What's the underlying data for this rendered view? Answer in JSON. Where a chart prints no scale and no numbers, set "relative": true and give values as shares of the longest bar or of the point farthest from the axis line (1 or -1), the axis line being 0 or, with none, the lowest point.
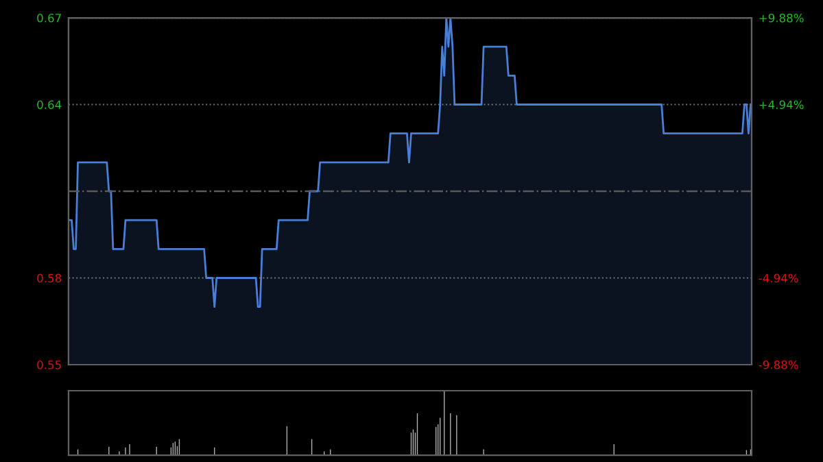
{
  "chart_data": [
    {
      "type": "area",
      "categories": [
        null,
        null,
        null,
        null,
        null,
        null,
        null,
        null,
        null,
        null,
        null,
        null,
        null,
        null,
        null,
        null,
        null,
        null,
        null,
        null,
        null,
        null,
        null,
        null,
        null,
        null,
        null,
        null,
        null,
        null,
        null,
        null,
        null,
        null,
        null,
        null,
        null,
        null,
        null,
        null,
        null,
        null,
        null,
        null,
        null,
        null,
        null,
        null,
        null,
        null,
        null,
        null,
        null,
        null,
        null,
        null,
        null,
        null,
        null,
        null,
        null,
        null,
        null,
        null,
        null,
        null,
        null,
        null,
        null,
        null,
        null,
        null,
        null,
        null,
        null,
        null,
        null,
        null,
        null,
        null,
        null,
        null,
        null,
        null,
        null,
        null,
        null,
        null,
        null,
        null,
        null,
        null,
        null,
        null,
        null,
        null,
        null,
        null,
        null,
        null,
        null,
        null,
        null,
        null,
        null,
        null,
        null,
        null,
        null,
        null,
        null,
        null,
        null,
        null,
        null,
        null,
        null,
        null,
        null,
        null,
        null,
        null,
        null,
        null,
        null,
        null,
        null,
        null,
        null,
        null,
        null,
        null,
        null,
        null,
        null,
        null,
        null,
        null,
        null,
        null,
        null,
        null,
        null,
        null,
        null,
        null,
        null,
        null,
        null,
        null,
        null,
        null,
        null,
        null,
        null,
        null,
        null,
        null,
        null,
        null,
        null,
        null,
        null,
        null,
        null,
        null,
        null,
        null,
        null,
        null,
        null,
        null,
        null,
        null,
        null,
        null,
        null,
        null,
        null,
        null,
        null,
        null,
        null,
        null,
        null,
        null,
        null,
        null,
        null,
        null,
        null,
        null,
        null,
        null,
        null,
        null,
        null,
        null,
        null,
        null,
        null,
        null,
        null,
        null,
        null,
        null,
        null,
        null,
        null,
        null,
        null,
        null,
        null,
        null,
        null,
        null,
        null,
        null,
        null,
        null,
        null,
        null,
        null,
        null,
        null,
        null,
        null,
        null,
        null,
        null,
        null,
        null,
        null,
        null,
        null,
        null,
        null,
        null,
        null,
        null,
        null,
        null,
        null,
        null,
        null,
        null,
        null,
        null,
        null,
        null,
        null,
        null,
        null,
        null,
        null,
        null,
        null,
        null,
        null,
        null,
        null,
        null,
        null,
        null,
        null,
        null,
        null,
        null,
        null,
        null,
        null,
        null,
        null,
        null,
        null,
        null,
        null,
        null,
        null,
        null,
        null,
        null,
        null,
        null,
        null,
        null,
        null,
        null,
        null,
        null,
        null,
        null,
        null,
        null,
        null,
        null,
        null,
        null,
        null,
        null,
        null,
        null,
        null,
        null,
        null,
        null,
        null,
        null,
        null,
        null,
        null,
        null,
        null,
        null,
        null,
        null,
        null,
        null,
        null,
        null,
        null,
        null,
        null,
        null,
        null,
        null,
        null,
        null,
        null,
        null
      ],
      "series": [
        {
          "color": "#4a7fd8",
          "values": [
            0.6,
            0.6,
            0.59,
            0.59,
            0.62,
            0.62,
            0.62,
            0.62,
            0.62,
            0.62,
            0.62,
            0.62,
            0.62,
            0.62,
            0.62,
            0.62,
            0.62,
            0.62,
            0.62,
            0.61,
            0.61,
            0.59,
            0.59,
            0.59,
            0.59,
            0.59,
            0.59,
            0.6,
            0.6,
            0.6,
            0.6,
            0.6,
            0.6,
            0.6,
            0.6,
            0.6,
            0.6,
            0.6,
            0.6,
            0.6,
            0.6,
            0.6,
            0.6,
            0.59,
            0.59,
            0.59,
            0.59,
            0.59,
            0.59,
            0.59,
            0.59,
            0.59,
            0.59,
            0.59,
            0.59,
            0.59,
            0.59,
            0.59,
            0.59,
            0.59,
            0.59,
            0.59,
            0.59,
            0.59,
            0.59,
            0.59,
            0.58,
            0.58,
            0.58,
            0.58,
            0.57,
            0.58,
            0.58,
            0.58,
            0.58,
            0.58,
            0.58,
            0.58,
            0.58,
            0.58,
            0.58,
            0.58,
            0.58,
            0.58,
            0.58,
            0.58,
            0.58,
            0.58,
            0.58,
            0.58,
            0.58,
            0.57,
            0.57,
            0.59,
            0.59,
            0.59,
            0.59,
            0.59,
            0.59,
            0.59,
            0.59,
            0.6,
            0.6,
            0.6,
            0.6,
            0.6,
            0.6,
            0.6,
            0.6,
            0.6,
            0.6,
            0.6,
            0.6,
            0.6,
            0.6,
            0.6,
            0.61,
            0.61,
            0.61,
            0.61,
            0.61,
            0.62,
            0.62,
            0.62,
            0.62,
            0.62,
            0.62,
            0.62,
            0.62,
            0.62,
            0.62,
            0.62,
            0.62,
            0.62,
            0.62,
            0.62,
            0.62,
            0.62,
            0.62,
            0.62,
            0.62,
            0.62,
            0.62,
            0.62,
            0.62,
            0.62,
            0.62,
            0.62,
            0.62,
            0.62,
            0.62,
            0.62,
            0.62,
            0.62,
            0.62,
            0.63,
            0.63,
            0.63,
            0.63,
            0.63,
            0.63,
            0.63,
            0.63,
            0.63,
            0.62,
            0.63,
            0.63,
            0.63,
            0.63,
            0.63,
            0.63,
            0.63,
            0.63,
            0.63,
            0.63,
            0.63,
            0.63,
            0.63,
            0.63,
            0.64,
            0.66,
            0.65,
            0.67,
            0.66,
            0.67,
            0.66,
            0.64,
            0.64,
            0.64,
            0.64,
            0.64,
            0.64,
            0.64,
            0.64,
            0.64,
            0.64,
            0.64,
            0.64,
            0.64,
            0.64,
            0.66,
            0.66,
            0.66,
            0.66,
            0.66,
            0.66,
            0.66,
            0.66,
            0.66,
            0.66,
            0.66,
            0.66,
            0.65,
            0.65,
            0.65,
            0.65,
            0.64,
            0.64,
            0.64,
            0.64,
            0.64,
            0.64,
            0.64,
            0.64,
            0.64,
            0.64,
            0.64,
            0.64,
            0.64,
            0.64,
            0.64,
            0.64,
            0.64,
            0.64,
            0.64,
            0.64,
            0.64,
            0.64,
            0.64,
            0.64,
            0.64,
            0.64,
            0.64,
            0.64,
            0.64,
            0.64,
            0.64,
            0.64,
            0.64,
            0.64,
            0.64,
            0.64,
            0.64,
            0.64,
            0.64,
            0.64,
            0.64,
            0.64,
            0.64,
            0.64,
            0.64,
            0.64,
            0.64,
            0.64,
            0.64,
            0.64,
            0.64,
            0.64,
            0.64,
            0.64,
            0.64,
            0.64,
            0.64,
            0.64,
            0.64,
            0.64,
            0.64,
            0.64,
            0.64,
            0.64,
            0.64,
            0.64,
            0.64,
            0.64,
            0.64,
            0.64,
            0.64,
            0.63,
            0.63,
            0.63,
            0.63,
            0.63,
            0.63,
            0.63,
            0.63,
            0.63,
            0.63,
            0.63,
            0.63,
            0.63,
            0.63,
            0.63,
            0.63,
            0.63,
            0.63,
            0.63,
            0.63,
            0.63,
            0.63,
            0.63,
            0.63,
            0.63,
            0.63,
            0.63,
            0.63,
            0.63,
            0.63,
            0.63,
            0.63,
            0.63,
            0.63,
            0.63,
            0.63,
            0.63,
            0.63,
            0.63,
            0.64,
            0.64,
            0.63,
            0.64
          ]
        }
      ],
      "ylim": [
        0.55,
        0.67
      ],
      "yticks": [
        0.55,
        0.58,
        0.64,
        0.67
      ],
      "y2lim": [
        -9.88,
        9.88
      ],
      "y2ticks": [
        {
          "value": -9.88,
          "label": "-9.88%"
        },
        {
          "value": -4.94,
          "label": "-4.94%"
        },
        {
          "value": 4.94,
          "label": "+4.94%"
        },
        {
          "value": 9.88,
          "label": "+9.88%"
        }
      ],
      "ref_lines": [
        {
          "axis": "y",
          "value": 0.61,
          "color": "#5a5a5a",
          "line_style": "dashdot"
        }
      ],
      "grid": "y",
      "tick_labels": "y"
    },
    {
      "type": "bar",
      "relative": true,
      "categories": [
        null,
        null,
        null,
        null,
        null,
        null,
        null,
        null,
        null,
        null,
        null,
        null,
        null,
        null,
        null,
        null,
        null,
        null,
        null,
        null,
        null,
        null,
        null,
        null,
        null,
        null,
        null,
        null,
        null,
        null,
        null,
        null,
        null,
        null,
        null,
        null,
        null,
        null,
        null,
        null,
        null,
        null,
        null,
        null,
        null,
        null,
        null,
        null,
        null,
        null,
        null,
        null,
        null,
        null,
        null,
        null,
        null,
        null,
        null,
        null,
        null,
        null,
        null,
        null,
        null,
        null,
        null,
        null,
        null,
        null,
        null,
        null,
        null,
        null,
        null,
        null,
        null,
        null,
        null,
        null,
        null,
        null,
        null,
        null,
        null,
        null,
        null,
        null,
        null,
        null,
        null,
        null,
        null,
        null,
        null,
        null,
        null,
        null,
        null,
        null,
        null,
        null,
        null,
        null,
        null,
        null,
        null,
        null,
        null,
        null,
        null,
        null,
        null,
        null,
        null,
        null,
        null,
        null,
        null,
        null,
        null,
        null,
        null,
        null,
        null,
        null,
        null,
        null,
        null,
        null,
        null,
        null,
        null,
        null,
        null,
        null,
        null,
        null,
        null,
        null,
        null,
        null,
        null,
        null,
        null,
        null,
        null,
        null,
        null,
        null,
        null,
        null,
        null,
        null,
        null,
        null,
        null,
        null,
        null,
        null,
        null,
        null,
        null,
        null,
        null,
        null,
        null,
        null,
        null,
        null,
        null,
        null,
        null,
        null,
        null,
        null,
        null,
        null,
        null,
        null,
        null,
        null,
        null,
        null,
        null,
        null,
        null,
        null,
        null,
        null,
        null,
        null,
        null,
        null,
        null,
        null,
        null,
        null,
        null,
        null,
        null,
        null,
        null,
        null,
        null,
        null,
        null,
        null,
        null,
        null,
        null,
        null,
        null,
        null,
        null,
        null,
        null,
        null,
        null,
        null,
        null,
        null,
        null,
        null,
        null,
        null,
        null,
        null,
        null,
        null,
        null,
        null,
        null,
        null,
        null,
        null,
        null,
        null,
        null,
        null,
        null,
        null,
        null,
        null,
        null,
        null,
        null,
        null,
        null,
        null,
        null,
        null,
        null,
        null,
        null,
        null,
        null,
        null,
        null,
        null,
        null,
        null,
        null,
        null,
        null,
        null,
        null,
        null,
        null,
        null,
        null,
        null,
        null,
        null,
        null,
        null,
        null,
        null,
        null,
        null,
        null,
        null,
        null,
        null,
        null,
        null,
        null,
        null,
        null,
        null,
        null,
        null,
        null,
        null,
        null,
        null,
        null,
        null,
        null,
        null,
        null,
        null,
        null,
        null,
        null,
        null,
        null,
        null,
        null,
        null,
        null,
        null,
        null,
        null,
        null,
        null,
        null,
        null,
        null,
        null,
        null,
        null,
        null,
        null,
        null,
        null,
        null,
        null,
        null,
        null
      ],
      "series": [
        {
          "color": "#b4b4b4",
          "values": [
            0.01,
            0.01,
            0.01,
            0.01,
            0.09,
            0.01,
            0.01,
            0.01,
            0.01,
            0.01,
            0.01,
            0.01,
            0.01,
            0.01,
            0.01,
            0.01,
            0.01,
            0.01,
            0.01,
            0.13,
            0.01,
            0.01,
            0.01,
            0.01,
            0.06,
            0.01,
            0.01,
            0.12,
            0.01,
            0.17,
            0.01,
            0.01,
            0.01,
            0.01,
            0.01,
            0.01,
            0.01,
            0.01,
            0.01,
            0.01,
            0.01,
            0.01,
            0.13,
            0.01,
            0.01,
            0.01,
            0.01,
            0.01,
            0.01,
            0.12,
            0.19,
            0.21,
            0.14,
            0.25,
            0.01,
            0.01,
            0.01,
            0.01,
            0.01,
            0.01,
            0.01,
            0.01,
            0.01,
            0.01,
            0.01,
            0.01,
            0.01,
            0.01,
            0.01,
            0.01,
            0.12,
            0.01,
            0.01,
            0.01,
            0.01,
            0.01,
            0.01,
            0.01,
            0.01,
            0.01,
            0.01,
            0.01,
            0.01,
            0.01,
            0.01,
            0.01,
            0.01,
            0.01,
            0.01,
            0.01,
            0.01,
            0.01,
            0.01,
            0.01,
            0.01,
            0.01,
            0.01,
            0.01,
            0.01,
            0.01,
            0.01,
            0.01,
            0.01,
            0.01,
            0.01,
            0.45,
            0.01,
            0.01,
            0.01,
            0.01,
            0.01,
            0.01,
            0.01,
            0.01,
            0.01,
            0.01,
            0.01,
            0.25,
            0.01,
            0.01,
            0.01,
            0.01,
            0.01,
            0.06,
            0.01,
            0.01,
            0.09,
            0.01,
            0.01,
            0.01,
            0.01,
            0.01,
            0.01,
            0.01,
            0.01,
            0.01,
            0.01,
            0.01,
            0.01,
            0.01,
            0.01,
            0.01,
            0.01,
            0.01,
            0.01,
            0.01,
            0.01,
            0.01,
            0.01,
            0.01,
            0.01,
            0.01,
            0.01,
            0.01,
            0.01,
            0.01,
            0.01,
            0.01,
            0.01,
            0.01,
            0.01,
            0.01,
            0.01,
            0.01,
            0.01,
            0.35,
            0.4,
            0.35,
            0.65,
            0.01,
            0.01,
            0.01,
            0.01,
            0.01,
            0.01,
            0.01,
            0.01,
            0.44,
            0.48,
            0.58,
            0.01,
            1,
            0.01,
            0.01,
            0.65,
            0.01,
            0.01,
            0.62,
            0.01,
            0.01,
            0.01,
            0.01,
            0.01,
            0.01,
            0.01,
            0.01,
            0.01,
            0.01,
            0.01,
            0.01,
            0.09,
            0.01,
            0.01,
            0.01,
            0.01,
            0.01,
            0.01,
            0.01,
            0.01,
            0.01,
            0.01,
            0.01,
            0.01,
            0.01,
            0.01,
            0.01,
            0.01,
            0.01,
            0.01,
            0.01,
            0.01,
            0.01,
            0.01,
            0.01,
            0.01,
            0.01,
            0.01,
            0.01,
            0.01,
            0.01,
            0.01,
            0.01,
            0.01,
            0.01,
            0.01,
            0.01,
            0.01,
            0.01,
            0.01,
            0.01,
            0.01,
            0.01,
            0.01,
            0.01,
            0.01,
            0.01,
            0.01,
            0.01,
            0.01,
            0.01,
            0.01,
            0.01,
            0.01,
            0.01,
            0.01,
            0.01,
            0.01,
            0.01,
            0.01,
            0.01,
            0.01,
            0.01,
            0.01,
            0.17,
            0.01,
            0.01,
            0.01,
            0.01,
            0.01,
            0.01,
            0.01,
            0.01,
            0.01,
            0.01,
            0.01,
            0.01,
            0.01,
            0.01,
            0.01,
            0.01,
            0.01,
            0.01,
            0.01,
            0.01,
            0.01,
            0.01,
            0.01,
            0.01,
            0.01,
            0.01,
            0.01,
            0.01,
            0.01,
            0.01,
            0.01,
            0.01,
            0.01,
            0.01,
            0.01,
            0.01,
            0.01,
            0.01,
            0.01,
            0.01,
            0.01,
            0.01,
            0.01,
            0.01,
            0.01,
            0.01,
            0.01,
            0.01,
            0.01,
            0.01,
            0.01,
            0.01,
            0.01,
            0.01,
            0.01,
            0.01,
            0.01,
            0.01,
            0.01,
            0.01,
            0.01,
            0.01,
            0.01,
            0.08,
            0.01,
            0.09
          ]
        }
      ],
      "tick_labels": false
    }
  ]
}
